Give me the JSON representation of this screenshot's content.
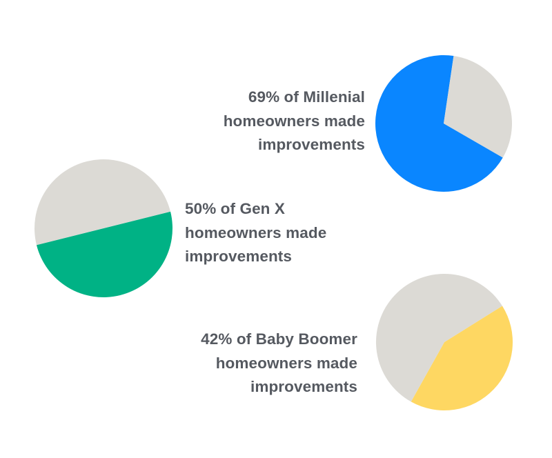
{
  "chart_data": [
    {
      "type": "pie",
      "group": "Millenial",
      "slices": [
        {
          "label": "made improvements",
          "value": 69,
          "color": "#0a86ff"
        },
        {
          "label": "other",
          "value": 31,
          "color": "#dcdad5"
        }
      ],
      "caption_lines": [
        "69% of Millenial",
        "homeowners made",
        "improvements"
      ]
    },
    {
      "type": "pie",
      "group": "Gen X",
      "slices": [
        {
          "label": "made improvements",
          "value": 50,
          "color": "#00b285"
        },
        {
          "label": "other",
          "value": 50,
          "color": "#dcdad5"
        }
      ],
      "caption_lines": [
        "50% of Gen X",
        "homeowners made",
        "improvements"
      ]
    },
    {
      "type": "pie",
      "group": "Baby Boomer",
      "slices": [
        {
          "label": "made improvements",
          "value": 42,
          "color": "#fed762"
        },
        {
          "label": "other",
          "value": 58,
          "color": "#dcdad5"
        }
      ],
      "caption_lines": [
        "42% of Baby Boomer",
        "homeowners made",
        "improvements"
      ]
    }
  ]
}
